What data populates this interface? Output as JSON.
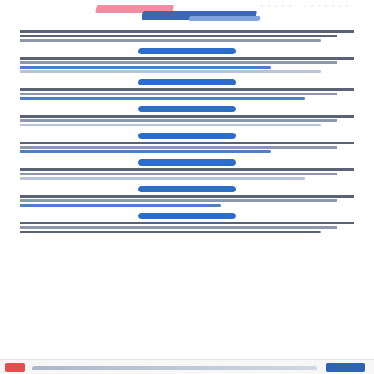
{
  "colors": {
    "accent_blue": "#2c6ec7",
    "accent_pink": "#f28ca0",
    "text_dark": "#5a6275",
    "text_mid": "#8d97ab",
    "text_light": "#b9c3d6",
    "footer_red": "#e44d4d",
    "footer_blue": "#2d63b5"
  },
  "icons": {
    "header_ribbon": "decorative-ribbon",
    "footer_left_logo": "logo",
    "footer_right_logo": "logo"
  }
}
